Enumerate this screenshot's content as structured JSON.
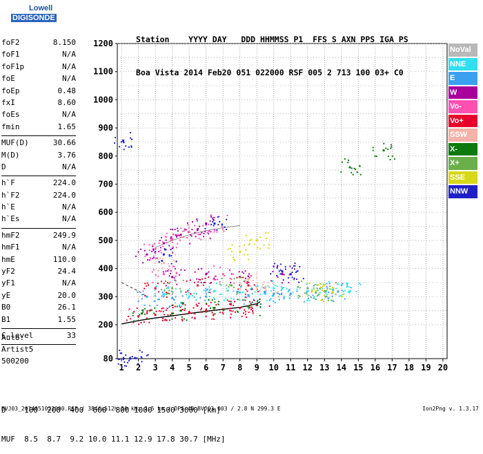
{
  "logo": {
    "line1": "Lowell",
    "line2": "DIGISONDE"
  },
  "header": {
    "line1": "Station    YYYY DAY   DDD HHMMSS P1  FFS S AXN PPS IGA PS",
    "line2": "Boa Vista 2014 Feb20 051 022000 RSF 005 2 713 100 03+ C0"
  },
  "params": [
    {
      "label": "foF2",
      "value": "8.150"
    },
    {
      "label": "foF1",
      "value": "N/A"
    },
    {
      "label": "foF1p",
      "value": "N/A"
    },
    {
      "label": "foE",
      "value": "N/A"
    },
    {
      "label": "foEp",
      "value": "0.48"
    },
    {
      "label": "fxI",
      "value": "8.60"
    },
    {
      "label": "foEs",
      "value": "N/A"
    },
    {
      "label": "fmin",
      "value": "1.65"
    },
    {
      "sep": true
    },
    {
      "label": "MUF(D)",
      "value": "30.66"
    },
    {
      "label": "M(D)",
      "value": "3.76"
    },
    {
      "label": "D",
      "value": "N/A"
    },
    {
      "sep": true
    },
    {
      "label": "h`F",
      "value": "224.0"
    },
    {
      "label": "h`F2",
      "value": "224.0"
    },
    {
      "label": "h`E",
      "value": "N/A"
    },
    {
      "label": "h`Es",
      "value": "N/A"
    },
    {
      "sep": true
    },
    {
      "label": "hmF2",
      "value": "249.9"
    },
    {
      "label": "hmF1",
      "value": "N/A"
    },
    {
      "label": "hmE",
      "value": "110.0"
    },
    {
      "label": "yF2",
      "value": "24.4"
    },
    {
      "label": "yF1",
      "value": "N/A"
    },
    {
      "label": "yE",
      "value": "20.0"
    },
    {
      "label": "B0",
      "value": "26.1"
    },
    {
      "label": "B1",
      "value": "1.55"
    },
    {
      "sep": true
    },
    {
      "label": "C-level",
      "value": "33"
    },
    {
      "sep": true
    }
  ],
  "auto": {
    "line1": "Auto:",
    "line2": "Artist5",
    "line3": "500200"
  },
  "dmuf": {
    "d_line": "D    100  200  400  600  800 1000 1500 3000 [km]",
    "muf_line": "MUF  8.5  8.7  9.2 10.0 11.1 12.9 17.8 30.7 [MHz]"
  },
  "footer": {
    "left": "BVJ03_2014051022000.RSF / 384fx512h 50 kHz 2.5 km / DPS-4D BVJ03 003 / 2.8 N 299.3 E",
    "right": "Ion2Png v. 1.3.17"
  },
  "legend": [
    {
      "label": "NoVal",
      "color": "#b8b8b8"
    },
    {
      "label": "NNE",
      "color": "#2ee0f0"
    },
    {
      "label": "E",
      "color": "#3aa0f0"
    },
    {
      "label": "W",
      "color": "#a8009a"
    },
    {
      "label": "Vo-",
      "color": "#ff50b0"
    },
    {
      "label": "Vo+",
      "color": "#e8002a"
    },
    {
      "label": "SSW",
      "color": "#f4b2a8"
    },
    {
      "label": "X-",
      "color": "#0c7a0c"
    },
    {
      "label": "X+",
      "color": "#6ab04a"
    },
    {
      "label": "SSE",
      "color": "#d8d818"
    },
    {
      "label": "NNW",
      "color": "#2020c8"
    }
  ],
  "chart_data": {
    "type": "scatter",
    "xlim": [
      0.75,
      20.25
    ],
    "ylim": [
      80,
      1200
    ],
    "x_ticks": [
      1,
      2,
      3,
      4,
      5,
      6,
      7,
      8,
      9,
      10,
      11,
      12,
      13,
      14,
      15,
      16,
      17,
      18,
      19,
      20
    ],
    "y_ticks": [
      80,
      200,
      300,
      400,
      500,
      600,
      700,
      800,
      900,
      1000,
      1100,
      1200
    ],
    "grid": true,
    "legend_position": "right",
    "series": [
      {
        "name": "NNE",
        "color": "#2ee0f0",
        "points": [
          [
            3.5,
            310
          ],
          [
            5.0,
            300
          ],
          [
            6.5,
            320
          ],
          [
            8.0,
            315
          ],
          [
            9.5,
            310
          ],
          [
            10.5,
            330
          ],
          [
            12.0,
            320
          ],
          [
            13.5,
            325
          ],
          [
            14.5,
            320
          ]
        ]
      },
      {
        "name": "E",
        "color": "#3aa0f0",
        "points": [
          [
            2.5,
            300
          ],
          [
            4.0,
            295
          ],
          [
            6.0,
            300
          ],
          [
            8.5,
            305
          ],
          [
            10.0,
            310
          ],
          [
            11.0,
            310
          ],
          [
            12.5,
            315
          ],
          [
            13.8,
            318
          ]
        ]
      },
      {
        "name": "W",
        "color": "#a8009a",
        "points": [
          [
            2.5,
            450
          ],
          [
            3.5,
            490
          ],
          [
            4.5,
            520
          ],
          [
            5.5,
            540
          ],
          [
            6.0,
            560
          ],
          [
            4.0,
            370
          ],
          [
            6.0,
            380
          ],
          [
            8.0,
            370
          ],
          [
            10.5,
            380
          ]
        ]
      },
      {
        "name": "Vo-",
        "color": "#ff50b0",
        "points": [
          [
            3.0,
            470
          ],
          [
            4.0,
            505
          ],
          [
            5.0,
            530
          ],
          [
            6.5,
            560
          ],
          [
            3.5,
            380
          ],
          [
            7.0,
            380
          ]
        ]
      },
      {
        "name": "Vo+",
        "color": "#e8002a",
        "points": [
          [
            2.0,
            230
          ],
          [
            3.0,
            235
          ],
          [
            4.0,
            240
          ],
          [
            5.0,
            245
          ],
          [
            6.0,
            250
          ],
          [
            7.0,
            255
          ],
          [
            8.0,
            260
          ],
          [
            9.0,
            270
          ],
          [
            3.0,
            330
          ],
          [
            5.5,
            340
          ],
          [
            8.5,
            340
          ]
        ]
      },
      {
        "name": "SSW",
        "color": "#f4b2a8",
        "points": [
          [
            3.5,
            420
          ],
          [
            8.5,
            360
          ],
          [
            9.5,
            330
          ]
        ]
      },
      {
        "name": "X-",
        "color": "#0c7a0c",
        "points": [
          [
            2.2,
            240
          ],
          [
            4.5,
            250
          ],
          [
            6.5,
            260
          ],
          [
            8.5,
            265
          ],
          [
            14.5,
            760
          ],
          [
            16.5,
            820
          ]
        ]
      },
      {
        "name": "X+",
        "color": "#6ab04a",
        "points": [
          [
            4.0,
            330
          ],
          [
            7.5,
            340
          ],
          [
            12.0,
            330
          ],
          [
            13.0,
            320
          ]
        ]
      },
      {
        "name": "SSE",
        "color": "#d8d818",
        "points": [
          [
            8.0,
            460
          ],
          [
            9.0,
            500
          ],
          [
            12.5,
            320
          ],
          [
            13.5,
            315
          ]
        ]
      },
      {
        "name": "NNW",
        "color": "#2020c8",
        "points": [
          [
            1.1,
            855
          ],
          [
            1.5,
            80
          ],
          [
            1.8,
            82
          ],
          [
            10.5,
            390
          ],
          [
            11.0,
            380
          ],
          [
            3.5,
            450
          ],
          [
            6.5,
            560
          ]
        ]
      }
    ],
    "curves": [
      {
        "kind": "solid",
        "points": [
          [
            1.0,
            203
          ],
          [
            2.0,
            215
          ],
          [
            3.0,
            224
          ],
          [
            4.0,
            232
          ],
          [
            5.0,
            240
          ],
          [
            6.0,
            248
          ],
          [
            7.0,
            255
          ],
          [
            8.0,
            262
          ],
          [
            8.5,
            268
          ],
          [
            9.0,
            275
          ],
          [
            9.2,
            282
          ]
        ]
      },
      {
        "kind": "dashed",
        "points": [
          [
            1.0,
            350
          ],
          [
            1.5,
            335
          ],
          [
            2.0,
            320
          ],
          [
            2.5,
            300
          ]
        ]
      },
      {
        "kind": "solid-thin",
        "points": [
          [
            3.0,
            475
          ],
          [
            4.0,
            500
          ],
          [
            5.0,
            520
          ],
          [
            6.0,
            535
          ],
          [
            7.0,
            545
          ],
          [
            8.0,
            553
          ]
        ]
      }
    ]
  }
}
